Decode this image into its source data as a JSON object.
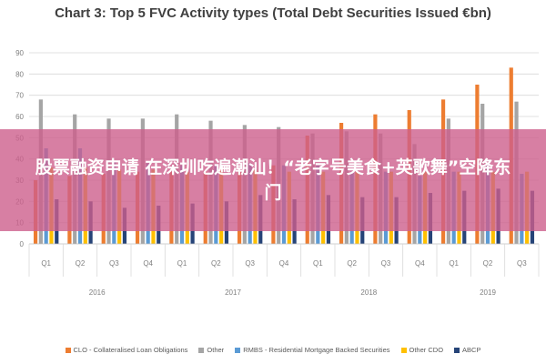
{
  "banner": {
    "text": "股票融资申请 在深圳吃遍潮汕！“老字号美食+英歌舞”空降东门"
  },
  "chart_data": {
    "type": "bar",
    "title": "Chart 3: Top 5 FVC Activity types (Total Debt Securities Issued €bn)",
    "xlabel": "",
    "ylabel": "",
    "ylim": [
      0,
      90
    ],
    "yticks": [
      0,
      10,
      20,
      30,
      40,
      50,
      60,
      70,
      80,
      90
    ],
    "grid": true,
    "legend_position": "bottom",
    "categories": [
      "Q1",
      "Q2",
      "Q3",
      "Q4",
      "Q1",
      "Q2",
      "Q3",
      "Q4",
      "Q1",
      "Q2",
      "Q3",
      "Q4",
      "Q1",
      "Q2",
      "Q3"
    ],
    "year_groups": [
      {
        "label": "2016",
        "count": 4
      },
      {
        "label": "2017",
        "count": 4
      },
      {
        "label": "2018",
        "count": 4
      },
      {
        "label": "2019",
        "count": 3
      }
    ],
    "series": [
      {
        "name": "CLO - Collateralised Loan Obligations",
        "color": "#ED7D31",
        "values": [
          30,
          32,
          33,
          34,
          34,
          34,
          34,
          37,
          51,
          57,
          61,
          63,
          68,
          75,
          83
        ]
      },
      {
        "name": "Other",
        "color": "#A5A5A5",
        "values": [
          68,
          61,
          59,
          59,
          61,
          58,
          56,
          55,
          52,
          53,
          52,
          47,
          59,
          66,
          67
        ]
      },
      {
        "name": "RMBS - Residential Mortgage Backed Securities",
        "color": "#5B9BD5",
        "values": [
          45,
          45,
          39,
          38,
          37,
          37,
          38,
          37,
          37,
          34,
          34,
          32,
          34,
          38,
          33
        ]
      },
      {
        "name": "Other CDO",
        "color": "#FFC000",
        "values": [
          36,
          36,
          35,
          35,
          34,
          35,
          35,
          34,
          34,
          34,
          34,
          34,
          34,
          34,
          34
        ]
      },
      {
        "name": "ABCP",
        "color": "#264478",
        "values": [
          21,
          20,
          17,
          18,
          19,
          20,
          23,
          21,
          23,
          22,
          22,
          24,
          25,
          26,
          25
        ]
      }
    ]
  }
}
